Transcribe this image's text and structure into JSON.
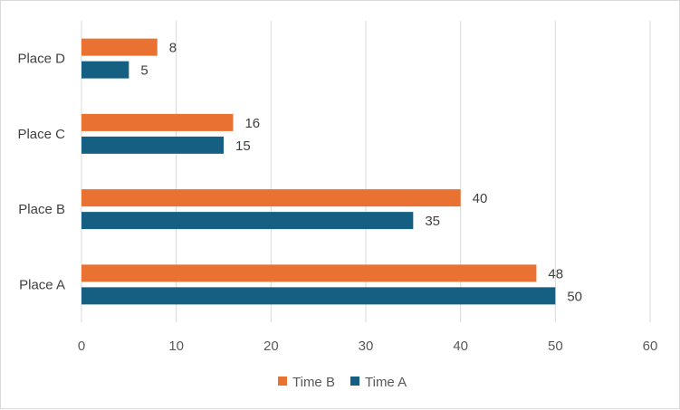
{
  "chart_data": {
    "type": "bar",
    "orientation": "horizontal",
    "categories": [
      "Place A",
      "Place B",
      "Place C",
      "Place D"
    ],
    "series": [
      {
        "name": "Time A",
        "values": [
          50,
          35,
          15,
          5
        ],
        "color": "#156082"
      },
      {
        "name": "Time B",
        "values": [
          48,
          40,
          16,
          8
        ],
        "color": "#E97132"
      }
    ],
    "xlim": [
      0,
      60
    ],
    "x_ticks": [
      0,
      10,
      20,
      30,
      40,
      50,
      60
    ],
    "grid": true,
    "data_labels": true,
    "legend_position": "bottom",
    "legend_order": [
      "Time B",
      "Time A"
    ],
    "gridline_color": "#d9d9d9"
  }
}
